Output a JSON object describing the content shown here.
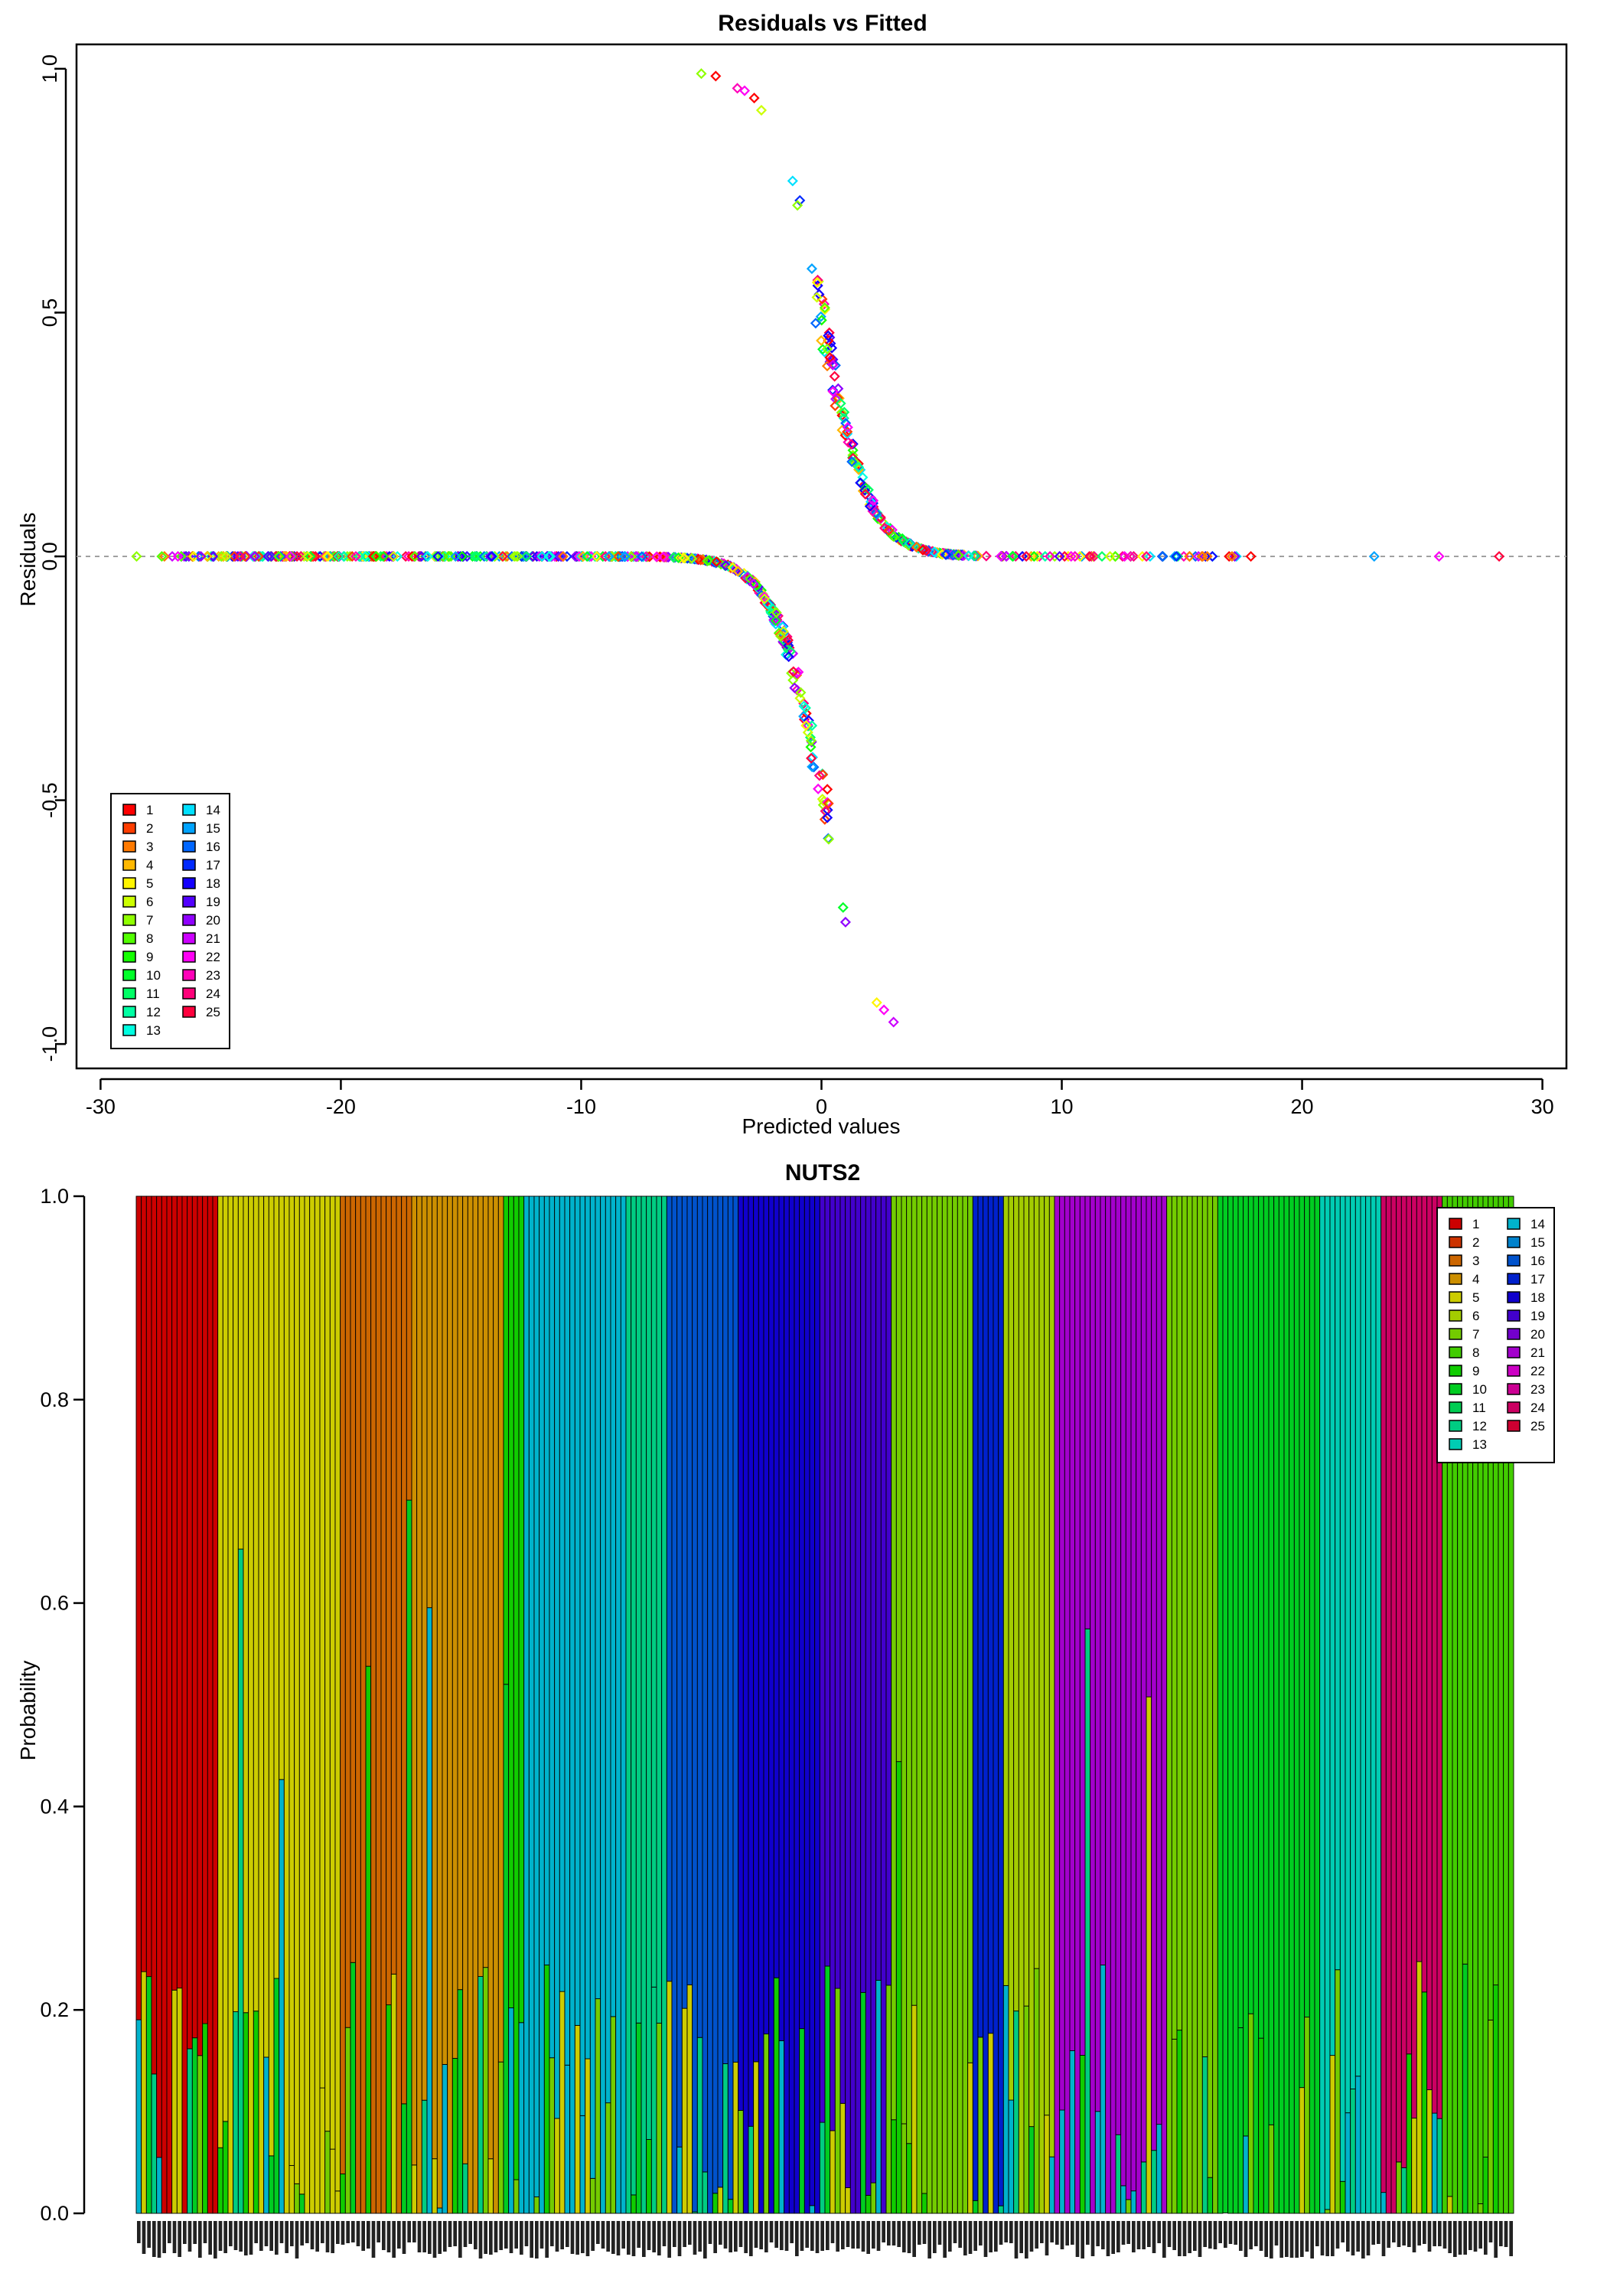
{
  "chart_data": [
    {
      "type": "scatter",
      "title": "Residuals vs Fitted",
      "xlabel": "Predicted values",
      "ylabel": "Residuals",
      "xlim": [
        -31,
        31
      ],
      "ylim": [
        -1.05,
        1.05
      ],
      "xticks": [
        -30,
        -20,
        -10,
        0,
        10,
        20,
        30
      ],
      "yticks": [
        -1.0,
        -0.5,
        0.0,
        0.5,
        1.0
      ],
      "xtick_labels": [
        "-30",
        "-20",
        "-10",
        "0",
        "10",
        "20",
        "30"
      ],
      "ytick_labels": [
        "-1.0",
        "-0.5",
        "0.0",
        "0.5",
        "1.0"
      ],
      "reference_line_y": 0,
      "marker": "open-diamond",
      "legend_position": "bottom-left",
      "legend": [
        "1",
        "2",
        "3",
        "4",
        "5",
        "6",
        "7",
        "8",
        "9",
        "10",
        "11",
        "12",
        "13",
        "14",
        "15",
        "16",
        "17",
        "18",
        "19",
        "20",
        "21",
        "22",
        "23",
        "24",
        "25"
      ],
      "notable_points": [
        {
          "x": -5.0,
          "y": 0.99,
          "group": "7"
        },
        {
          "x": -4.4,
          "y": 0.985,
          "group": "1"
        },
        {
          "x": -3.5,
          "y": 0.96,
          "group": "23"
        },
        {
          "x": -3.2,
          "y": 0.955,
          "group": "22"
        },
        {
          "x": -2.8,
          "y": 0.94,
          "group": "1"
        },
        {
          "x": -2.5,
          "y": 0.915,
          "group": "6"
        },
        {
          "x": -1.2,
          "y": 0.77,
          "group": "14"
        },
        {
          "x": -0.9,
          "y": 0.73,
          "group": "17"
        },
        {
          "x": -1.0,
          "y": 0.72,
          "group": "7"
        },
        {
          "x": -0.4,
          "y": 0.59,
          "group": "15"
        },
        {
          "x": 0.3,
          "y": -0.58,
          "group": "7"
        },
        {
          "x": 0.9,
          "y": -0.72,
          "group": "10"
        },
        {
          "x": 1.0,
          "y": -0.75,
          "group": "20"
        },
        {
          "x": 2.3,
          "y": -0.915,
          "group": "5"
        },
        {
          "x": 2.6,
          "y": -0.93,
          "group": "22"
        },
        {
          "x": 3.0,
          "y": -0.955,
          "group": "21"
        },
        {
          "x": 28.2,
          "y": 0.0,
          "group": "25"
        },
        {
          "x": 25.7,
          "y": 0.0,
          "group": "22"
        },
        {
          "x": 23.0,
          "y": 0.0,
          "group": "15"
        },
        {
          "x": -28.5,
          "y": 0.0,
          "group": "7"
        }
      ]
    },
    {
      "type": "bar",
      "title": "NUTS2",
      "xlabel": "",
      "ylabel": "Probability",
      "ylim": [
        0,
        1
      ],
      "stacked": true,
      "yticks": [
        0.0,
        0.2,
        0.4,
        0.6,
        0.8,
        1.0
      ],
      "ytick_labels": [
        "0.0",
        "0.2",
        "0.4",
        "0.6",
        "0.8",
        "1.0"
      ],
      "legend_position": "top-right",
      "legend": [
        "1",
        "2",
        "3",
        "4",
        "5",
        "6",
        "7",
        "8",
        "9",
        "10",
        "11",
        "12",
        "13",
        "14",
        "15",
        "16",
        "17",
        "18",
        "19",
        "20",
        "21",
        "22",
        "23",
        "24",
        "25"
      ],
      "num_bars": 270,
      "bar_labels_note": "vertical region-code labels under each bar (not legible)",
      "dominant_class_by_bar_block": [
        {
          "bars": 16,
          "class": 1
        },
        {
          "bars": 24,
          "class": 5
        },
        {
          "bars": 14,
          "class": 3
        },
        {
          "bars": 18,
          "class": 4
        },
        {
          "bars": 4,
          "class": 9
        },
        {
          "bars": 20,
          "class": 14
        },
        {
          "bars": 8,
          "class": 12
        },
        {
          "bars": 14,
          "class": 16
        },
        {
          "bars": 16,
          "class": 18
        },
        {
          "bars": 14,
          "class": 19
        },
        {
          "bars": 16,
          "class": 7
        },
        {
          "bars": 6,
          "class": 17
        },
        {
          "bars": 10,
          "class": 6
        },
        {
          "bars": 22,
          "class": 21
        },
        {
          "bars": 10,
          "class": 7
        },
        {
          "bars": 20,
          "class": 10
        },
        {
          "bars": 12,
          "class": 13
        },
        {
          "bars": 12,
          "class": 24
        },
        {
          "bars": 14,
          "class": 8
        }
      ]
    }
  ],
  "colors": {
    "palette_25": [
      "#FF0000",
      "#FF3D00",
      "#FF7A00",
      "#FFB800",
      "#FFF500",
      "#CCFF00",
      "#8FFF00",
      "#52FF00",
      "#14FF00",
      "#00FF29",
      "#00FF66",
      "#00FFA3",
      "#00FFE0",
      "#00E0FF",
      "#00A3FF",
      "#0066FF",
      "#0029FF",
      "#1400FF",
      "#5200FF",
      "#8F00FF",
      "#CC00FF",
      "#FF00F5",
      "#FF00B8",
      "#FF007A",
      "#FF003D"
    ],
    "bar_palette_25": [
      "#CC0000",
      "#CC3300",
      "#CC6600",
      "#CC8F00",
      "#CCCC00",
      "#A3CC00",
      "#73CC00",
      "#42CC00",
      "#10CC00",
      "#00CC21",
      "#00CC52",
      "#00CC82",
      "#00CCB3",
      "#00B3CC",
      "#0082CC",
      "#0052CC",
      "#0021CC",
      "#1000CC",
      "#4200CC",
      "#7300CC",
      "#A300CC",
      "#CC00C4",
      "#CC0093",
      "#CC0062",
      "#CC0031"
    ],
    "reference_line": "#a0a0a0",
    "axis": "#000000"
  }
}
